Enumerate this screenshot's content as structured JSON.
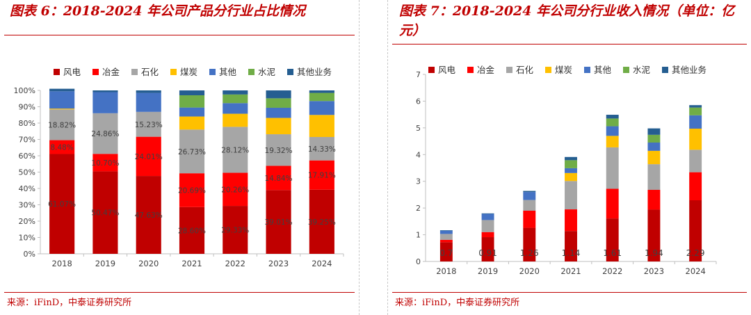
{
  "left": {
    "title": "图表 6：2018-2024 年公司产品分行业占比情况",
    "source": "来源：iFinD，中泰证券研究所",
    "chart_data": {
      "type": "bar",
      "stacked": "percent",
      "categories": [
        "2018",
        "2019",
        "2020",
        "2021",
        "2022",
        "2023",
        "2024"
      ],
      "ylim": [
        0,
        100
      ],
      "yticks": [
        "0%",
        "10%",
        "20%",
        "30%",
        "40%",
        "50%",
        "60%",
        "70%",
        "80%",
        "90%",
        "100%"
      ],
      "legend": [
        "风电",
        "冶金",
        "石化",
        "煤炭",
        "其他",
        "水泥",
        "其他业务"
      ],
      "colors": [
        "#c00000",
        "#ff0000",
        "#a6a6a6",
        "#ffc000",
        "#4472c4",
        "#70ad47",
        "#255e91"
      ],
      "series": [
        {
          "name": "风电",
          "values": [
            61.07,
            50.47,
            47.63,
            28.6,
            29.33,
            39.01,
            39.25
          ]
        },
        {
          "name": "冶金",
          "values": [
            8.48,
            10.7,
            24.01,
            20.69,
            20.26,
            14.84,
            17.91
          ]
        },
        {
          "name": "石化",
          "values": [
            18.82,
            24.86,
            15.23,
            26.73,
            28.12,
            19.32,
            14.33
          ]
        },
        {
          "name": "煤炭",
          "values": [
            0.5,
            0,
            0,
            8.0,
            8.0,
            10.0,
            13.5
          ]
        },
        {
          "name": "其他",
          "values": [
            10.6,
            12.9,
            11.6,
            5.5,
            6.5,
            6.2,
            8.5
          ]
        },
        {
          "name": "水泥",
          "values": [
            0,
            0,
            0,
            7.5,
            5.3,
            5.8,
            5.0
          ]
        },
        {
          "name": "其他业务",
          "values": [
            1.53,
            1.07,
            1.53,
            2.98,
            2.49,
            4.83,
            1.51
          ]
        }
      ],
      "labels": [
        {
          "series": 0,
          "texts": [
            "61.07%",
            "50.47%",
            "47.63%",
            "28.60%",
            "29.33%",
            "39.01%",
            "39.25%"
          ]
        },
        {
          "series": 1,
          "texts": [
            "8.48%",
            "10.70%",
            "24.01%",
            "20.69%",
            "20.26%",
            "14.84%",
            "17.91%"
          ]
        },
        {
          "series": 2,
          "texts": [
            "18.82%",
            "24.86%",
            "15.23%",
            "26.73%",
            "28.12%",
            "19.32%",
            "14.33%"
          ]
        }
      ]
    }
  },
  "right": {
    "title": "图表 7：2018-2024 年公司分行业收入情况（单位：亿元）",
    "source": "来源：iFinD，中泰证券研究所",
    "chart_data": {
      "type": "bar",
      "stacked": "value",
      "categories": [
        "2018",
        "2019",
        "2020",
        "2021",
        "2022",
        "2023",
        "2024"
      ],
      "ylim": [
        0,
        7
      ],
      "yticks": [
        "0",
        "1",
        "2",
        "3",
        "4",
        "5",
        "6",
        "7"
      ],
      "legend": [
        "风电",
        "冶金",
        "石化",
        "煤炭",
        "其他",
        "水泥",
        "其他业务"
      ],
      "colors": [
        "#c00000",
        "#ff0000",
        "#a6a6a6",
        "#ffc000",
        "#4472c4",
        "#70ad47",
        "#255e91"
      ],
      "series": [
        {
          "name": "风电",
          "values": [
            0.72,
            0.91,
            1.26,
            1.14,
            1.61,
            1.94,
            2.29
          ]
        },
        {
          "name": "冶金",
          "values": [
            0.09,
            0.19,
            0.64,
            0.81,
            1.11,
            0.74,
            1.05
          ]
        },
        {
          "name": "石化",
          "values": [
            0.22,
            0.45,
            0.4,
            1.06,
            1.55,
            0.96,
            0.84
          ]
        },
        {
          "name": "煤炭",
          "values": [
            0.0,
            0.0,
            0.0,
            0.3,
            0.43,
            0.5,
            0.79
          ]
        },
        {
          "name": "其他",
          "values": [
            0.12,
            0.23,
            0.3,
            0.18,
            0.36,
            0.31,
            0.5
          ]
        },
        {
          "name": "水泥",
          "values": [
            0.0,
            0.0,
            0.0,
            0.3,
            0.29,
            0.29,
            0.29
          ]
        },
        {
          "name": "其他业务",
          "values": [
            0.02,
            0.02,
            0.04,
            0.12,
            0.14,
            0.24,
            0.09
          ]
        }
      ],
      "labels": [
        {
          "series": 0,
          "texts": [
            "0.7",
            "0.91",
            "1.26",
            "1.14",
            "1.61",
            "1.94",
            "2.29"
          ]
        }
      ]
    }
  }
}
